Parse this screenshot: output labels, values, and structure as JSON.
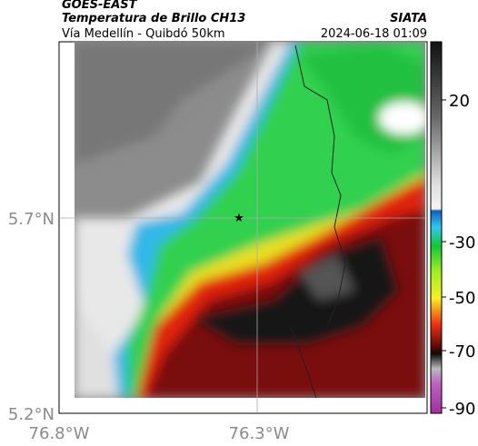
{
  "header": {
    "source": "GOES-EAST",
    "product": "Temperatura de Brillo CH13",
    "brand": "SIATA",
    "route": "Vía Medellín - Quibdó 50km",
    "datetime": "2024-06-18 01:09"
  },
  "map": {
    "lat_labels": [
      "5.7°N",
      "5.2°N"
    ],
    "lon_labels": [
      "76.8°W",
      "76.3°W"
    ]
  },
  "colorbar": {
    "ticks": [
      20,
      -30,
      -50,
      -70,
      -90
    ]
  }
}
